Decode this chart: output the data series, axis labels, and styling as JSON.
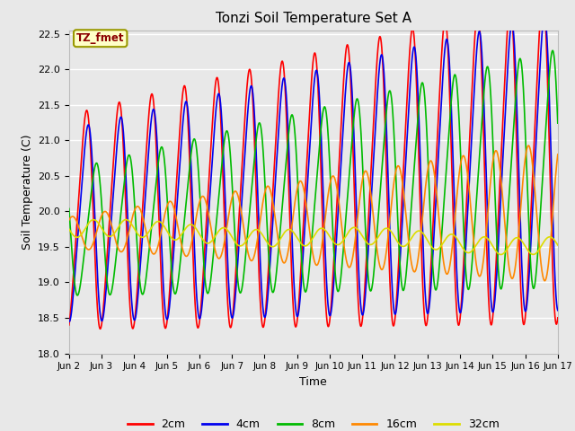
{
  "title": "Tonzi Soil Temperature Set A",
  "xlabel": "Time",
  "ylabel": "Soil Temperature (C)",
  "ylim": [
    18.0,
    22.55
  ],
  "xlim": [
    0,
    15
  ],
  "annotation": "TZ_fmet",
  "annotation_color": "#8B0000",
  "annotation_bg": "#FFFFC8",
  "annotation_border": "#999900",
  "fig_bg": "#E8E8E8",
  "plot_bg": "#E8E8E8",
  "tick_labels": [
    "Jun 2",
    "Jun 3",
    "Jun 4",
    "Jun 5",
    "Jun 6",
    "Jun 7",
    "Jun 8",
    "Jun 9",
    "Jun 10",
    "Jun 11",
    "Jun 12",
    "Jun 13",
    "Jun 14",
    "Jun 15",
    "Jun 16",
    "Jun 17"
  ],
  "series": {
    "2cm": {
      "color": "#FF0000",
      "lw": 1.2
    },
    "4cm": {
      "color": "#0000EE",
      "lw": 1.2
    },
    "8cm": {
      "color": "#00BB00",
      "lw": 1.2
    },
    "16cm": {
      "color": "#FF8800",
      "lw": 1.2
    },
    "32cm": {
      "color": "#DDDD00",
      "lw": 1.2
    }
  },
  "legend_colors": [
    "#FF0000",
    "#0000EE",
    "#00BB00",
    "#FF8800",
    "#DDDD00"
  ],
  "legend_labels": [
    "2cm",
    "4cm",
    "8cm",
    "16cm",
    "32cm"
  ]
}
